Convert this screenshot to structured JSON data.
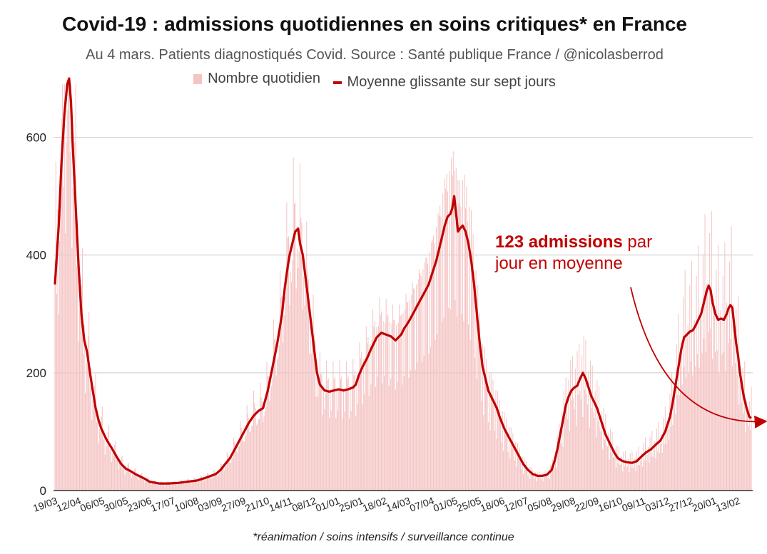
{
  "title": "Covid-19 : admissions quotidiennes en soins critiques* en France",
  "subtitle": "Au 4 mars. Patients diagnostiqués Covid. Source : Santé publique France / @nicolasberrod",
  "footnote": "*réanimation / soins intensifs / surveillance continue",
  "annotation": {
    "bold": "123 admissions",
    "rest": " par",
    "line2": "jour en moyenne"
  },
  "colors": {
    "bars": "#f4c3c3",
    "line": "#c00000",
    "grid": "#cccccc"
  },
  "chart_data": {
    "type": "bar",
    "overlay": "line",
    "legend": [
      "Nombre quotidien",
      "Moyenne glissante sur sept jours"
    ],
    "legend_position": "top-center",
    "grid": true,
    "ylim": [
      0,
      700
    ],
    "yticks": [
      0,
      200,
      400,
      600
    ],
    "xlabel": "",
    "ylabel": "",
    "xticks": [
      "19/03",
      "12/04",
      "06/05",
      "30/05",
      "23/06",
      "17/07",
      "10/08",
      "03/09",
      "27/09",
      "21/10",
      "14/11",
      "08/12",
      "01/01",
      "25/01",
      "18/02",
      "14/03",
      "07/04",
      "01/05",
      "25/05",
      "18/06",
      "12/07",
      "05/08",
      "29/08",
      "22/09",
      "16/10",
      "09/11",
      "03/12",
      "27/12",
      "20/01",
      "13/02"
    ],
    "days": 715,
    "series": [
      {
        "name": "Moyenne glissante sur sept jours",
        "points": [
          [
            0,
            350
          ],
          [
            4,
            450
          ],
          [
            7,
            560
          ],
          [
            10,
            640
          ],
          [
            13,
            690
          ],
          [
            15,
            700
          ],
          [
            17,
            660
          ],
          [
            19,
            580
          ],
          [
            22,
            480
          ],
          [
            25,
            380
          ],
          [
            28,
            300
          ],
          [
            31,
            255
          ],
          [
            34,
            235
          ],
          [
            37,
            200
          ],
          [
            40,
            170
          ],
          [
            43,
            140
          ],
          [
            46,
            120
          ],
          [
            49,
            105
          ],
          [
            55,
            85
          ],
          [
            60,
            72
          ],
          [
            65,
            58
          ],
          [
            70,
            45
          ],
          [
            75,
            37
          ],
          [
            80,
            33
          ],
          [
            85,
            28
          ],
          [
            90,
            24
          ],
          [
            95,
            20
          ],
          [
            100,
            15
          ],
          [
            110,
            12
          ],
          [
            120,
            12
          ],
          [
            130,
            13
          ],
          [
            140,
            15
          ],
          [
            150,
            17
          ],
          [
            160,
            22
          ],
          [
            170,
            28
          ],
          [
            175,
            35
          ],
          [
            180,
            45
          ],
          [
            185,
            55
          ],
          [
            190,
            70
          ],
          [
            195,
            85
          ],
          [
            200,
            100
          ],
          [
            205,
            115
          ],
          [
            210,
            127
          ],
          [
            215,
            135
          ],
          [
            220,
            140
          ],
          [
            225,
            170
          ],
          [
            230,
            210
          ],
          [
            235,
            250
          ],
          [
            240,
            300
          ],
          [
            243,
            345
          ],
          [
            246,
            380
          ],
          [
            248,
            400
          ],
          [
            251,
            420
          ],
          [
            254,
            440
          ],
          [
            257,
            445
          ],
          [
            259,
            420
          ],
          [
            262,
            400
          ],
          [
            265,
            360
          ],
          [
            268,
            320
          ],
          [
            271,
            280
          ],
          [
            274,
            240
          ],
          [
            277,
            200
          ],
          [
            280,
            180
          ],
          [
            285,
            170
          ],
          [
            290,
            168
          ],
          [
            295,
            170
          ],
          [
            300,
            172
          ],
          [
            305,
            170
          ],
          [
            310,
            172
          ],
          [
            315,
            175
          ],
          [
            318,
            180
          ],
          [
            321,
            195
          ],
          [
            325,
            210
          ],
          [
            330,
            225
          ],
          [
            334,
            240
          ],
          [
            337,
            250
          ],
          [
            340,
            260
          ],
          [
            345,
            268
          ],
          [
            350,
            265
          ],
          [
            355,
            262
          ],
          [
            360,
            255
          ],
          [
            363,
            260
          ],
          [
            366,
            265
          ],
          [
            369,
            275
          ],
          [
            372,
            282
          ],
          [
            375,
            290
          ],
          [
            380,
            305
          ],
          [
            385,
            320
          ],
          [
            390,
            335
          ],
          [
            395,
            350
          ],
          [
            400,
            375
          ],
          [
            403,
            390
          ],
          [
            406,
            410
          ],
          [
            409,
            430
          ],
          [
            412,
            450
          ],
          [
            415,
            465
          ],
          [
            418,
            470
          ],
          [
            420,
            480
          ],
          [
            422,
            500
          ],
          [
            424,
            470
          ],
          [
            426,
            440
          ],
          [
            428,
            445
          ],
          [
            431,
            450
          ],
          [
            434,
            440
          ],
          [
            437,
            420
          ],
          [
            440,
            390
          ],
          [
            443,
            350
          ],
          [
            446,
            300
          ],
          [
            449,
            250
          ],
          [
            452,
            210
          ],
          [
            455,
            190
          ],
          [
            458,
            170
          ],
          [
            461,
            160
          ],
          [
            464,
            150
          ],
          [
            467,
            140
          ],
          [
            470,
            125
          ],
          [
            475,
            105
          ],
          [
            480,
            90
          ],
          [
            485,
            75
          ],
          [
            490,
            60
          ],
          [
            495,
            45
          ],
          [
            500,
            35
          ],
          [
            505,
            28
          ],
          [
            510,
            25
          ],
          [
            515,
            25
          ],
          [
            520,
            27
          ],
          [
            525,
            35
          ],
          [
            528,
            50
          ],
          [
            531,
            70
          ],
          [
            534,
            95
          ],
          [
            537,
            120
          ],
          [
            540,
            145
          ],
          [
            543,
            160
          ],
          [
            546,
            170
          ],
          [
            549,
            175
          ],
          [
            552,
            178
          ],
          [
            555,
            190
          ],
          [
            558,
            200
          ],
          [
            561,
            190
          ],
          [
            564,
            175
          ],
          [
            567,
            160
          ],
          [
            570,
            150
          ],
          [
            573,
            140
          ],
          [
            576,
            125
          ],
          [
            579,
            110
          ],
          [
            582,
            95
          ],
          [
            585,
            85
          ],
          [
            588,
            75
          ],
          [
            591,
            65
          ],
          [
            595,
            55
          ],
          [
            600,
            50
          ],
          [
            605,
            48
          ],
          [
            610,
            47
          ],
          [
            615,
            50
          ],
          [
            620,
            58
          ],
          [
            625,
            65
          ],
          [
            630,
            70
          ],
          [
            635,
            78
          ],
          [
            640,
            85
          ],
          [
            645,
            100
          ],
          [
            650,
            125
          ],
          [
            653,
            150
          ],
          [
            656,
            180
          ],
          [
            659,
            210
          ],
          [
            662,
            240
          ],
          [
            665,
            260
          ],
          [
            668,
            265
          ],
          [
            671,
            270
          ],
          [
            674,
            272
          ],
          [
            677,
            280
          ],
          [
            680,
            290
          ],
          [
            683,
            300
          ],
          [
            686,
            320
          ],
          [
            689,
            340
          ],
          [
            691,
            348
          ],
          [
            693,
            340
          ],
          [
            695,
            320
          ],
          [
            698,
            300
          ],
          [
            701,
            290
          ],
          [
            704,
            292
          ],
          [
            707,
            290
          ],
          [
            710,
            300
          ],
          [
            712,
            310
          ],
          [
            714,
            315
          ],
          [
            716,
            310
          ],
          [
            718,
            280
          ],
          [
            720,
            250
          ],
          [
            722,
            230
          ],
          [
            724,
            200
          ],
          [
            726,
            180
          ],
          [
            728,
            160
          ],
          [
            731,
            140
          ],
          [
            734,
            125
          ],
          [
            736,
            123
          ]
        ]
      }
    ]
  }
}
